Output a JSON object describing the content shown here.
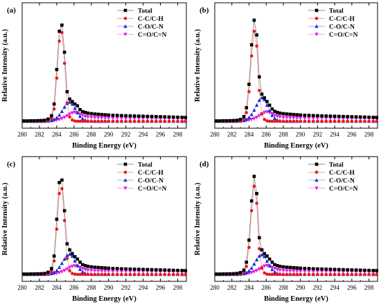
{
  "figure": {
    "panels": [
      "(a)",
      "(b)",
      "(c)",
      "(d)"
    ]
  },
  "colors": {
    "Total": "#000000",
    "C-C/C-H": "#e8191f",
    "C-O/C-N": "#1f2fd6",
    "C=O/C=N": "#e21ce8",
    "thin_total": "#8c8c8c",
    "thin_cc": "#f4a3a3",
    "thin_co": "#a6b0ee",
    "thin_coo": "#f1a6f1"
  },
  "chart_data": [
    {
      "panel": "(a)",
      "type": "line",
      "xlabel": "Binding Energy (eV)",
      "ylabel": "Relative Intensity (a.u.)",
      "xlim": [
        280,
        299
      ],
      "xticks": [
        280,
        282,
        284,
        286,
        288,
        290,
        292,
        294,
        296,
        298
      ],
      "legend_position": "top-right",
      "markers": {
        "Total": "square",
        "C-C/C-H": "circle",
        "C-O/C-N": "triangle-up",
        "C=O/C=N": "triangle-down"
      },
      "x": [
        280.2,
        280.6,
        281.0,
        281.4,
        281.8,
        282.2,
        282.6,
        283.0,
        283.4,
        283.7,
        284.0,
        284.3,
        284.6,
        284.9,
        285.2,
        285.5,
        285.8,
        286.1,
        286.4,
        286.7,
        287.0,
        287.3,
        287.6,
        288.0,
        288.4,
        288.8,
        289.2,
        289.6,
        290.0,
        290.5,
        291.0,
        291.5,
        292.0,
        292.5,
        293.0,
        293.5,
        294.0,
        294.5,
        295.0,
        295.5,
        296.0,
        296.5,
        297.0,
        297.5,
        298.0,
        298.5,
        298.9
      ],
      "series": [
        {
          "name": "Total",
          "values": [
            0.3,
            0.3,
            0.4,
            0.4,
            0.5,
            0.6,
            0.8,
            1.8,
            4.5,
            14.0,
            42.0,
            73.0,
            78.0,
            56.0,
            24.0,
            18.0,
            16.0,
            14.0,
            12.5,
            9.5,
            7.8,
            7.2,
            6.6,
            6.2,
            5.9,
            5.7,
            5.5,
            5.3,
            5.1,
            4.9,
            4.8,
            4.6,
            4.5,
            4.4,
            4.3,
            4.2,
            4.1,
            4.0,
            3.9,
            3.8,
            3.7,
            3.6,
            3.5,
            3.4,
            3.3,
            3.2,
            3.1
          ]
        },
        {
          "name": "C-C/C-H",
          "values": [
            0.0,
            0.0,
            0.0,
            0.0,
            0.0,
            0.0,
            0.1,
            0.5,
            2.5,
            10.0,
            35.0,
            65.0,
            72.0,
            47.0,
            15.0,
            3.5,
            1.0,
            0.2,
            0.0,
            0.0,
            0.0,
            0.0,
            0.0,
            0.0,
            0.0,
            0.0,
            0.0,
            0.0,
            0.0,
            0.0,
            0.0,
            0.0,
            0.0,
            0.0,
            0.0,
            0.0,
            0.0,
            0.0,
            0.0,
            0.0,
            0.0,
            0.0,
            0.0,
            0.0,
            0.0,
            0.0,
            0.0
          ]
        },
        {
          "name": "C-O/C-N",
          "values": [
            0.0,
            0.0,
            0.0,
            0.0,
            0.0,
            0.0,
            0.0,
            0.2,
            0.6,
            1.4,
            2.8,
            5.0,
            8.0,
            11.5,
            14.5,
            15.5,
            14.0,
            10.5,
            7.0,
            4.0,
            2.0,
            0.9,
            0.4,
            0.1,
            0.0,
            0.0,
            0.0,
            0.0,
            0.0,
            0.0,
            0.0,
            0.0,
            0.0,
            0.0,
            0.0,
            0.0,
            0.0,
            0.0,
            0.0,
            0.0,
            0.0,
            0.0,
            0.0,
            0.0,
            0.0,
            0.0,
            0.0
          ]
        },
        {
          "name": "C=O/C=N",
          "values": [
            0.2,
            0.2,
            0.2,
            0.2,
            0.3,
            0.3,
            0.3,
            0.4,
            0.5,
            0.7,
            1.0,
            1.5,
            2.2,
            3.2,
            4.5,
            5.8,
            6.8,
            7.2,
            6.8,
            5.8,
            4.8,
            4.0,
            3.5,
            3.2,
            3.0,
            2.9,
            2.8,
            2.7,
            2.7,
            2.6,
            2.6,
            2.5,
            2.5,
            2.5,
            2.4,
            2.4,
            2.4,
            2.4,
            2.3,
            2.3,
            2.3,
            2.3,
            2.2,
            2.2,
            2.2,
            2.2,
            2.2
          ]
        }
      ]
    },
    {
      "panel": "(b)",
      "type": "line",
      "xlabel": "Binding Energy (eV)",
      "ylabel": "Relative Intensity (a.u.)",
      "xlim": [
        280,
        299
      ],
      "xticks": [
        280,
        282,
        284,
        286,
        288,
        290,
        292,
        294,
        296,
        298
      ],
      "legend_position": "top-right",
      "markers": {
        "Total": "square",
        "C-C/C-H": "circle",
        "C-O/C-N": "triangle-up",
        "C=O/C=N": "triangle-down"
      },
      "x": [
        280.2,
        280.6,
        281.0,
        281.4,
        281.8,
        282.2,
        282.6,
        283.0,
        283.4,
        283.7,
        284.0,
        284.3,
        284.6,
        284.9,
        285.2,
        285.5,
        285.8,
        286.1,
        286.4,
        286.7,
        287.0,
        287.3,
        287.6,
        288.0,
        288.4,
        288.8,
        289.2,
        289.6,
        290.0,
        290.5,
        291.0,
        291.5,
        292.0,
        292.5,
        293.0,
        293.5,
        294.0,
        294.5,
        295.0,
        295.5,
        296.0,
        296.5,
        297.0,
        297.5,
        298.0,
        298.5,
        298.9
      ],
      "series": [
        {
          "name": "Total",
          "values": [
            0.3,
            0.3,
            0.4,
            0.4,
            0.5,
            0.6,
            0.8,
            1.5,
            3.8,
            11.0,
            30.0,
            62.0,
            82.0,
            70.0,
            36.0,
            22.0,
            19.0,
            16.0,
            13.0,
            10.0,
            8.0,
            7.2,
            6.6,
            6.2,
            5.9,
            5.7,
            5.5,
            5.3,
            5.1,
            4.9,
            4.8,
            4.6,
            4.5,
            4.4,
            4.3,
            4.2,
            4.1,
            4.0,
            3.9,
            3.8,
            3.7,
            3.6,
            3.5,
            3.4,
            3.3,
            3.2,
            3.1
          ]
        },
        {
          "name": "C-C/C-H",
          "values": [
            0.0,
            0.0,
            0.0,
            0.0,
            0.0,
            0.0,
            0.1,
            0.4,
            2.0,
            7.0,
            24.0,
            53.0,
            73.0,
            61.0,
            25.0,
            6.0,
            1.5,
            0.3,
            0.0,
            0.0,
            0.0,
            0.0,
            0.0,
            0.0,
            0.0,
            0.0,
            0.0,
            0.0,
            0.0,
            0.0,
            0.0,
            0.0,
            0.0,
            0.0,
            0.0,
            0.0,
            0.0,
            0.0,
            0.0,
            0.0,
            0.0,
            0.0,
            0.0,
            0.0,
            0.0,
            0.0,
            0.0
          ]
        },
        {
          "name": "C-O/C-N",
          "values": [
            0.0,
            0.0,
            0.0,
            0.0,
            0.0,
            0.0,
            0.0,
            0.2,
            0.6,
            1.5,
            3.0,
            5.5,
            9.0,
            13.0,
            17.0,
            19.0,
            17.5,
            13.0,
            8.5,
            4.8,
            2.4,
            1.0,
            0.4,
            0.1,
            0.0,
            0.0,
            0.0,
            0.0,
            0.0,
            0.0,
            0.0,
            0.0,
            0.0,
            0.0,
            0.0,
            0.0,
            0.0,
            0.0,
            0.0,
            0.0,
            0.0,
            0.0,
            0.0,
            0.0,
            0.0,
            0.0,
            0.0
          ]
        },
        {
          "name": "C=O/C=N",
          "values": [
            0.2,
            0.2,
            0.2,
            0.2,
            0.3,
            0.3,
            0.3,
            0.4,
            0.5,
            0.7,
            1.0,
            1.5,
            2.2,
            3.2,
            4.5,
            6.0,
            7.2,
            7.6,
            7.0,
            6.0,
            4.9,
            4.1,
            3.6,
            3.2,
            3.0,
            2.9,
            2.8,
            2.7,
            2.7,
            2.6,
            2.6,
            2.5,
            2.5,
            2.5,
            2.4,
            2.4,
            2.4,
            2.4,
            2.3,
            2.3,
            2.3,
            2.3,
            2.2,
            2.2,
            2.2,
            2.2,
            2.2
          ]
        }
      ]
    },
    {
      "panel": "(c)",
      "type": "line",
      "xlabel": "Binding Energy (eV)",
      "ylabel": "Relative Intensity (a.u.)",
      "xlim": [
        280,
        299
      ],
      "xticks": [
        280,
        282,
        284,
        286,
        288,
        290,
        292,
        294,
        296,
        298
      ],
      "legend_position": "top-right",
      "markers": {
        "Total": "square",
        "C-C/C-H": "circle",
        "C-O/C-N": "triangle-up",
        "C=O/C=N": "triangle-down"
      },
      "x": [
        280.2,
        280.6,
        281.0,
        281.4,
        281.8,
        282.2,
        282.6,
        283.0,
        283.4,
        283.7,
        284.0,
        284.3,
        284.6,
        284.9,
        285.2,
        285.5,
        285.8,
        286.1,
        286.4,
        286.7,
        287.0,
        287.3,
        287.6,
        288.0,
        288.4,
        288.8,
        289.2,
        289.6,
        290.0,
        290.5,
        291.0,
        291.5,
        292.0,
        292.5,
        293.0,
        293.5,
        294.0,
        294.5,
        295.0,
        295.5,
        296.0,
        296.5,
        297.0,
        297.5,
        298.0,
        298.5,
        298.9
      ],
      "series": [
        {
          "name": "Total",
          "values": [
            0.3,
            0.3,
            0.4,
            0.4,
            0.5,
            0.6,
            0.8,
            1.8,
            4.8,
            15.0,
            45.0,
            75.0,
            77.0,
            52.0,
            25.0,
            20.0,
            17.0,
            14.5,
            12.5,
            10.0,
            8.0,
            7.2,
            6.6,
            6.2,
            5.9,
            5.7,
            5.5,
            5.3,
            5.1,
            4.9,
            4.8,
            4.6,
            4.5,
            4.4,
            4.3,
            4.2,
            4.1,
            4.0,
            3.9,
            3.8,
            3.7,
            3.6,
            3.5,
            3.4,
            3.3,
            3.2,
            3.1
          ]
        },
        {
          "name": "C-C/C-H",
          "values": [
            0.0,
            0.0,
            0.0,
            0.0,
            0.0,
            0.0,
            0.1,
            0.5,
            2.6,
            11.0,
            37.0,
            66.0,
            70.0,
            44.0,
            13.0,
            3.0,
            0.8,
            0.2,
            0.0,
            0.0,
            0.0,
            0.0,
            0.0,
            0.0,
            0.0,
            0.0,
            0.0,
            0.0,
            0.0,
            0.0,
            0.0,
            0.0,
            0.0,
            0.0,
            0.0,
            0.0,
            0.0,
            0.0,
            0.0,
            0.0,
            0.0,
            0.0,
            0.0,
            0.0,
            0.0,
            0.0,
            0.0
          ]
        },
        {
          "name": "C-O/C-N",
          "values": [
            0.0,
            0.0,
            0.0,
            0.0,
            0.0,
            0.0,
            0.0,
            0.2,
            0.7,
            1.6,
            3.2,
            5.8,
            9.0,
            12.5,
            15.5,
            16.5,
            15.0,
            11.0,
            7.2,
            4.2,
            2.1,
            0.9,
            0.4,
            0.1,
            0.0,
            0.0,
            0.0,
            0.0,
            0.0,
            0.0,
            0.0,
            0.0,
            0.0,
            0.0,
            0.0,
            0.0,
            0.0,
            0.0,
            0.0,
            0.0,
            0.0,
            0.0,
            0.0,
            0.0,
            0.0,
            0.0,
            0.0
          ]
        },
        {
          "name": "C=O/C=N",
          "values": [
            0.2,
            0.2,
            0.2,
            0.2,
            0.3,
            0.3,
            0.3,
            0.4,
            0.5,
            0.7,
            1.0,
            1.5,
            2.2,
            3.2,
            4.4,
            5.7,
            6.7,
            7.0,
            6.6,
            5.7,
            4.7,
            4.0,
            3.5,
            3.2,
            3.0,
            2.9,
            2.8,
            2.7,
            2.7,
            2.6,
            2.6,
            2.5,
            2.5,
            2.5,
            2.4,
            2.4,
            2.4,
            2.4,
            2.3,
            2.3,
            2.3,
            2.3,
            2.2,
            2.2,
            2.2,
            2.2,
            2.2
          ]
        }
      ]
    },
    {
      "panel": "(d)",
      "type": "line",
      "xlabel": "Binding Energy (eV)",
      "ylabel": "Relative Intensity (a.u.)",
      "xlim": [
        280,
        299
      ],
      "xticks": [
        280,
        282,
        284,
        286,
        288,
        290,
        292,
        294,
        296,
        298
      ],
      "legend_position": "top-right",
      "markers": {
        "Total": "square",
        "C-C/C-H": "circle",
        "C-O/C-N": "triangle-up",
        "C=O/C=N": "triangle-down"
      },
      "x": [
        280.2,
        280.6,
        281.0,
        281.4,
        281.8,
        282.2,
        282.6,
        283.0,
        283.4,
        283.7,
        284.0,
        284.3,
        284.6,
        284.9,
        285.2,
        285.5,
        285.8,
        286.1,
        286.4,
        286.7,
        287.0,
        287.3,
        287.6,
        288.0,
        288.4,
        288.8,
        289.2,
        289.6,
        290.0,
        290.5,
        291.0,
        291.5,
        292.0,
        292.5,
        293.0,
        293.5,
        294.0,
        294.5,
        295.0,
        295.5,
        296.0,
        296.5,
        297.0,
        297.5,
        298.0,
        298.5,
        298.9
      ],
      "series": [
        {
          "name": "Total",
          "values": [
            0.3,
            0.3,
            0.4,
            0.4,
            0.5,
            0.6,
            0.8,
            1.5,
            3.5,
            10.0,
            28.0,
            60.0,
            80.0,
            66.0,
            30.0,
            20.0,
            17.0,
            15.0,
            12.5,
            10.0,
            8.0,
            7.2,
            6.6,
            6.2,
            5.9,
            5.7,
            5.5,
            5.3,
            5.1,
            4.9,
            4.8,
            4.6,
            4.5,
            4.4,
            4.3,
            4.2,
            4.1,
            4.0,
            3.9,
            3.8,
            3.7,
            3.6,
            3.5,
            3.4,
            3.3,
            3.2,
            3.1
          ]
        },
        {
          "name": "C-C/C-H",
          "values": [
            0.0,
            0.0,
            0.0,
            0.0,
            0.0,
            0.0,
            0.1,
            0.4,
            1.8,
            6.5,
            22.0,
            52.0,
            72.0,
            58.0,
            21.0,
            5.0,
            1.2,
            0.2,
            0.0,
            0.0,
            0.0,
            0.0,
            0.0,
            0.0,
            0.0,
            0.0,
            0.0,
            0.0,
            0.0,
            0.0,
            0.0,
            0.0,
            0.0,
            0.0,
            0.0,
            0.0,
            0.0,
            0.0,
            0.0,
            0.0,
            0.0,
            0.0,
            0.0,
            0.0,
            0.0,
            0.0,
            0.0
          ]
        },
        {
          "name": "C-O/C-N",
          "values": [
            0.0,
            0.0,
            0.0,
            0.0,
            0.0,
            0.0,
            0.0,
            0.2,
            0.6,
            1.4,
            2.9,
            5.2,
            8.5,
            12.0,
            15.0,
            16.0,
            14.5,
            10.8,
            7.0,
            4.0,
            2.0,
            0.9,
            0.4,
            0.1,
            0.0,
            0.0,
            0.0,
            0.0,
            0.0,
            0.0,
            0.0,
            0.0,
            0.0,
            0.0,
            0.0,
            0.0,
            0.0,
            0.0,
            0.0,
            0.0,
            0.0,
            0.0,
            0.0,
            0.0,
            0.0,
            0.0,
            0.0
          ]
        },
        {
          "name": "C=O/C=N",
          "values": [
            0.2,
            0.2,
            0.2,
            0.2,
            0.3,
            0.3,
            0.3,
            0.4,
            0.5,
            0.7,
            1.0,
            1.5,
            2.2,
            3.2,
            4.4,
            5.7,
            6.8,
            7.2,
            6.8,
            5.8,
            4.8,
            4.0,
            3.5,
            3.2,
            3.0,
            2.9,
            2.8,
            2.7,
            2.7,
            2.6,
            2.6,
            2.5,
            2.5,
            2.5,
            2.4,
            2.4,
            2.4,
            2.4,
            2.3,
            2.3,
            2.3,
            2.3,
            2.2,
            2.2,
            2.2,
            2.2,
            2.2
          ]
        }
      ]
    }
  ]
}
